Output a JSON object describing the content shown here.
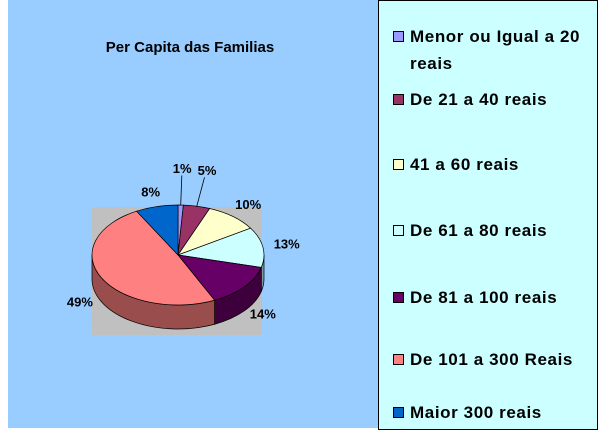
{
  "chart_data": {
    "type": "pie",
    "title": "Per Capita das Familias",
    "categories": [
      "Menor ou Igual a 20 reais",
      "De 21 a 40 reais",
      "41 a 60 reais",
      "De 61 a 80 reais",
      "De 81 a 100 reais",
      "De 101 a 300 Reais",
      "Maior 300 reais"
    ],
    "values": [
      1,
      5,
      10,
      13,
      14,
      49,
      8
    ],
    "value_labels": [
      "1%",
      "5%",
      "10%",
      "13%",
      "14%",
      "49%",
      "8%"
    ],
    "colors": [
      "#9999ff",
      "#993366",
      "#ffffcc",
      "#ccffff",
      "#660066",
      "#ff8080",
      "#0066cc"
    ]
  }
}
